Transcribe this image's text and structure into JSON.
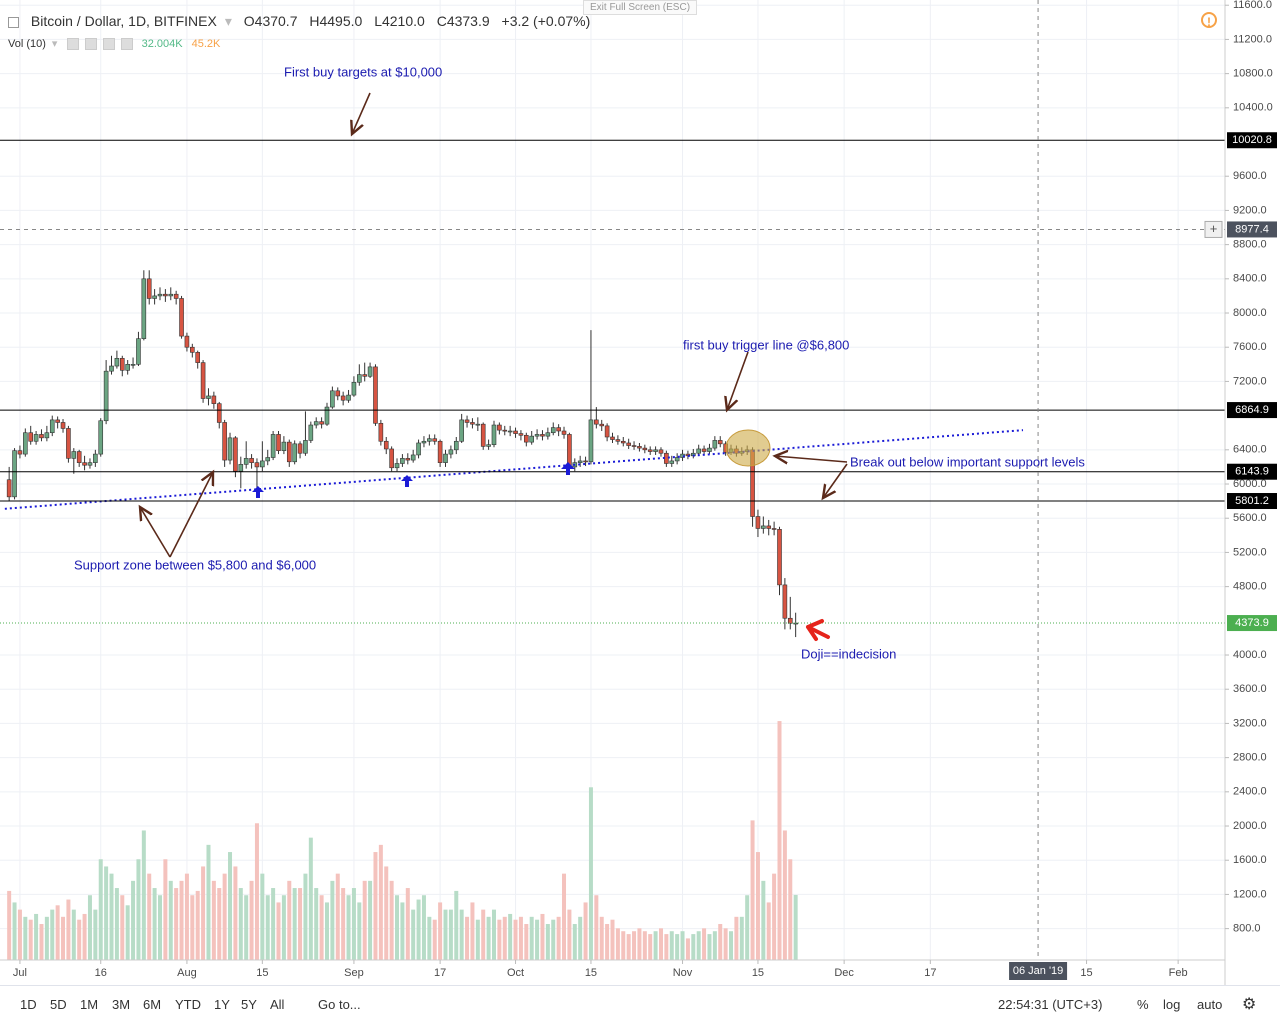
{
  "header": {
    "symbol": "Bitcoin / Dollar, 1D, BITFINEX",
    "ohlc": [
      "O4370.7",
      "H4495.0",
      "L4210.0",
      "C4373.9"
    ],
    "change": "+3.2 (+0.07%)",
    "volume_label": "Vol (10)",
    "volume_values": [
      "32.004K",
      "45.2K"
    ],
    "exit": "Exit Full Screen (ESC)"
  },
  "toolbar": {
    "ranges": [
      "1D",
      "5D",
      "1M",
      "3M",
      "6M",
      "YTD",
      "1Y",
      "5Y",
      "All"
    ],
    "goto": "Go to...",
    "clock": "22:54:31 (UTC+3)",
    "percent": "%",
    "log": "log",
    "auto": "auto"
  },
  "chart_data": {
    "type": "candlestick",
    "x": [
      -2,
      -1,
      0,
      1,
      2,
      3,
      4,
      5,
      6,
      7,
      8,
      9,
      10,
      11,
      12,
      13,
      14,
      15,
      16,
      17,
      18,
      19,
      20,
      21,
      22,
      23,
      24,
      25,
      26,
      27,
      28,
      29,
      30,
      31,
      32,
      33,
      34,
      35,
      36,
      37,
      38,
      39,
      40,
      41,
      42,
      43,
      44,
      45,
      46,
      47,
      48,
      49,
      50,
      51,
      52,
      53,
      54,
      55,
      56,
      57,
      58,
      59,
      60,
      61,
      62,
      63,
      64,
      65,
      66,
      67,
      68,
      69,
      70,
      71,
      72,
      73,
      74,
      75,
      76,
      77,
      78,
      79,
      80,
      81,
      82,
      83,
      84,
      85,
      86,
      87,
      88,
      89,
      90,
      91,
      92,
      93,
      94,
      95,
      96,
      97,
      98,
      99,
      100,
      101,
      102,
      103,
      104,
      105,
      106,
      107,
      108,
      109,
      110,
      111,
      112,
      113,
      114,
      115,
      116,
      117,
      118,
      119,
      120,
      121,
      122,
      123,
      124,
      125,
      126,
      127,
      128,
      129,
      130,
      131,
      132,
      133,
      134,
      135,
      136,
      137,
      138,
      139,
      140,
      141,
      142,
      143,
      144
    ],
    "open": [
      6050,
      5850,
      6390,
      6350,
      6600,
      6500,
      6580,
      6540,
      6600,
      6750,
      6720,
      6650,
      6300,
      6380,
      6250,
      6220,
      6250,
      6350,
      6740,
      7320,
      7380,
      7470,
      7330,
      7400,
      7400,
      7700,
      8400,
      8170,
      8200,
      8220,
      8200,
      8220,
      8170,
      7730,
      7600,
      7540,
      7420,
      7000,
      7030,
      6940,
      6720,
      6280,
      6540,
      6150,
      6230,
      6300,
      6250,
      6200,
      6270,
      6310,
      6580,
      6390,
      6490,
      6260,
      6470,
      6360,
      6510,
      6690,
      6730,
      6700,
      6900,
      7090,
      7030,
      6980,
      7040,
      7190,
      7280,
      7260,
      7370,
      6710,
      6500,
      6410,
      6190,
      6240,
      6300,
      6280,
      6340,
      6480,
      6500,
      6530,
      6500,
      6250,
      6350,
      6400,
      6500,
      6750,
      6720,
      6700,
      6700,
      6440,
      6460,
      6690,
      6630,
      6620,
      6620,
      6590,
      6570,
      6490,
      6560,
      6580,
      6560,
      6600,
      6660,
      6620,
      6580,
      6200,
      6250,
      6270,
      6260,
      6750,
      6700,
      6680,
      6550,
      6520,
      6500,
      6480,
      6450,
      6440,
      6420,
      6400,
      6380,
      6400,
      6360,
      6240,
      6270,
      6310,
      6350,
      6330,
      6360,
      6410,
      6380,
      6420,
      6510,
      6470,
      6370,
      6410,
      6360,
      6380,
      6400,
      5620,
      5480,
      5510,
      5480,
      5470,
      4820,
      4430,
      4370.7
    ],
    "high": [
      6200,
      6420,
      6450,
      6650,
      6680,
      6620,
      6640,
      6680,
      6800,
      6790,
      6760,
      6680,
      6420,
      6400,
      6330,
      6300,
      6400,
      6770,
      7450,
      7500,
      7560,
      7500,
      7450,
      7480,
      7780,
      8500,
      8500,
      8280,
      8300,
      8280,
      8300,
      8260,
      8200,
      7770,
      7640,
      7560,
      7450,
      7120,
      7080,
      6960,
      6750,
      6600,
      6560,
      6320,
      6500,
      6350,
      6300,
      6500,
      6400,
      6620,
      6620,
      6560,
      6520,
      6510,
      6500,
      6850,
      6730,
      6780,
      6780,
      6950,
      7140,
      7130,
      7080,
      7100,
      7260,
      7400,
      7420,
      7420,
      7400,
      6750,
      6550,
      6440,
      6300,
      6350,
      6360,
      6400,
      6520,
      6560,
      6580,
      6580,
      6520,
      6400,
      6450,
      6550,
      6820,
      6800,
      6770,
      6780,
      6720,
      6520,
      6740,
      6720,
      6680,
      6680,
      6660,
      6630,
      6600,
      6620,
      6640,
      6630,
      6660,
      6720,
      6700,
      6670,
      6600,
      6300,
      6330,
      6320,
      7800,
      6900,
      6750,
      6710,
      6600,
      6570,
      6550,
      6530,
      6500,
      6480,
      6460,
      6440,
      6440,
      6430,
      6390,
      6330,
      6360,
      6400,
      6390,
      6410,
      6460,
      6450,
      6470,
      6560,
      6560,
      6500,
      6460,
      6450,
      6430,
      6450,
      6430,
      5700,
      5620,
      5580,
      5560,
      5500,
      4900,
      4680,
      4495
    ],
    "low": [
      5800,
      5820,
      6300,
      6320,
      6460,
      6460,
      6500,
      6500,
      6560,
      6650,
      6600,
      6250,
      6120,
      6200,
      6160,
      6180,
      6200,
      6320,
      6700,
      7280,
      7350,
      7260,
      7280,
      7350,
      7380,
      7680,
      8100,
      8100,
      8150,
      8130,
      8150,
      8100,
      7700,
      7550,
      7480,
      7350,
      6950,
      6920,
      6880,
      6650,
      6200,
      6230,
      6080,
      5950,
      6180,
      6180,
      5880,
      6150,
      6220,
      6280,
      6350,
      6350,
      6200,
      6230,
      6300,
      6330,
      6480,
      6650,
      6650,
      6680,
      6880,
      6980,
      6920,
      6950,
      7020,
      7150,
      7200,
      7240,
      6680,
      6450,
      6350,
      6150,
      6150,
      6200,
      6230,
      6250,
      6300,
      6430,
      6450,
      6460,
      6200,
      6200,
      6300,
      6350,
      6480,
      6660,
      6650,
      6620,
      6400,
      6400,
      6430,
      6580,
      6570,
      6560,
      6540,
      6510,
      6440,
      6460,
      6520,
      6510,
      6520,
      6570,
      6560,
      6530,
      6150,
      6150,
      6200,
      6210,
      6230,
      6650,
      6620,
      6500,
      6480,
      6460,
      6440,
      6410,
      6400,
      6380,
      6360,
      6340,
      6340,
      6320,
      6200,
      6200,
      6230,
      6270,
      6290,
      6300,
      6330,
      6340,
      6350,
      6390,
      6430,
      6330,
      6340,
      6320,
      6330,
      6340,
      5500,
      5380,
      5420,
      5400,
      5400,
      4700,
      4300,
      4300,
      4210
    ],
    "close": [
      5850,
      6390,
      6350,
      6600,
      6500,
      6580,
      6540,
      6600,
      6750,
      6720,
      6650,
      6300,
      6380,
      6250,
      6220,
      6250,
      6350,
      6740,
      7320,
      7380,
      7470,
      7330,
      7400,
      7400,
      7700,
      8400,
      8170,
      8200,
      8220,
      8200,
      8220,
      8170,
      7730,
      7600,
      7540,
      7420,
      7000,
      7030,
      6940,
      6720,
      6280,
      6540,
      6150,
      6230,
      6300,
      6250,
      6200,
      6270,
      6310,
      6580,
      6390,
      6490,
      6260,
      6470,
      6360,
      6510,
      6690,
      6730,
      6700,
      6900,
      7090,
      7030,
      6980,
      7040,
      7190,
      7280,
      7260,
      7370,
      6710,
      6500,
      6410,
      6190,
      6240,
      6300,
      6280,
      6340,
      6480,
      6500,
      6530,
      6500,
      6250,
      6350,
      6400,
      6500,
      6750,
      6720,
      6700,
      6700,
      6440,
      6460,
      6690,
      6630,
      6620,
      6620,
      6590,
      6570,
      6490,
      6560,
      6580,
      6560,
      6600,
      6660,
      6620,
      6580,
      6200,
      6250,
      6270,
      6260,
      6750,
      6700,
      6680,
      6550,
      6520,
      6500,
      6480,
      6450,
      6440,
      6420,
      6400,
      6380,
      6400,
      6360,
      6240,
      6270,
      6310,
      6350,
      6330,
      6360,
      6410,
      6380,
      6420,
      6510,
      6470,
      6370,
      6410,
      6360,
      6380,
      6400,
      5620,
      5480,
      5510,
      5480,
      5470,
      4820,
      4430,
      4370.7,
      4373.9
    ],
    "volume": [
      48,
      40,
      35,
      30,
      28,
      32,
      25,
      30,
      35,
      38,
      30,
      42,
      35,
      28,
      32,
      45,
      35,
      70,
      65,
      60,
      50,
      45,
      38,
      55,
      70,
      90,
      60,
      50,
      45,
      70,
      55,
      50,
      55,
      60,
      45,
      48,
      65,
      80,
      55,
      50,
      60,
      75,
      65,
      50,
      45,
      55,
      95,
      60,
      45,
      50,
      40,
      45,
      55,
      50,
      50,
      60,
      85,
      50,
      45,
      40,
      55,
      60,
      50,
      45,
      50,
      40,
      55,
      55,
      75,
      80,
      65,
      55,
      45,
      40,
      50,
      35,
      42,
      45,
      30,
      28,
      40,
      35,
      35,
      48,
      35,
      30,
      40,
      28,
      35,
      30,
      35,
      28,
      30,
      32,
      28,
      30,
      25,
      30,
      28,
      32,
      25,
      28,
      30,
      60,
      35,
      25,
      30,
      40,
      120,
      45,
      30,
      25,
      28,
      22,
      20,
      18,
      20,
      22,
      20,
      18,
      20,
      22,
      18,
      20,
      18,
      20,
      15,
      18,
      20,
      22,
      18,
      20,
      25,
      22,
      20,
      30,
      30,
      45,
      97,
      75,
      55,
      40,
      60,
      166,
      90,
      70,
      45.2
    ],
    "up_color": "#6ba583",
    "down_color": "#d75442",
    "up_volume_color": "#b7dcc7",
    "down_volume_color": "#f4c2bd",
    "xlim": [
      -3.7,
      223.7
    ],
    "ylim": [
      433,
      11661
    ],
    "volume_lim": [
      0,
      667
    ],
    "xticks": [
      {
        "value": 0,
        "label": "Jul"
      },
      {
        "value": 15,
        "label": "16"
      },
      {
        "value": 31,
        "label": "Aug"
      },
      {
        "value": 45,
        "label": "15"
      },
      {
        "value": 62,
        "label": "Sep"
      },
      {
        "value": 78,
        "label": "17"
      },
      {
        "value": 92,
        "label": "Oct"
      },
      {
        "value": 106,
        "label": "15"
      },
      {
        "value": 123,
        "label": "Nov"
      },
      {
        "value": 137,
        "label": "15"
      },
      {
        "value": 153,
        "label": "Dec"
      },
      {
        "value": 169,
        "label": "17"
      },
      {
        "value": 198,
        "label": "15"
      },
      {
        "value": 215,
        "label": "Feb"
      }
    ],
    "yticks": [
      {
        "value": 11600,
        "label": "11600.0"
      },
      {
        "value": 11200,
        "label": "11200.0"
      },
      {
        "value": 10800,
        "label": "10800.0"
      },
      {
        "value": 10400,
        "label": "10400.0"
      },
      {
        "value": 9600,
        "label": "9600.0"
      },
      {
        "value": 9200,
        "label": "9200.0"
      },
      {
        "value": 8800,
        "label": "8800.0"
      },
      {
        "value": 8400,
        "label": "8400.0"
      },
      {
        "value": 8000,
        "label": "8000.0"
      },
      {
        "value": 7600,
        "label": "7600.0"
      },
      {
        "value": 7200,
        "label": "7200.0"
      },
      {
        "value": 6400,
        "label": "6400.0"
      },
      {
        "value": 6000,
        "label": "6000.0"
      },
      {
        "value": 5600,
        "label": "5600.0"
      },
      {
        "value": 5200,
        "label": "5200.0"
      },
      {
        "value": 4800,
        "label": "4800.0"
      },
      {
        "value": 4000,
        "label": "4000.0"
      },
      {
        "value": 3600,
        "label": "3600.0"
      },
      {
        "value": 3200,
        "label": "3200.0"
      },
      {
        "value": 2800,
        "label": "2800.0"
      },
      {
        "value": 2400,
        "label": "2400.0"
      },
      {
        "value": 2000,
        "label": "2000.0"
      },
      {
        "value": 1600,
        "label": "1600.0"
      },
      {
        "value": 1200,
        "label": "1200.0"
      },
      {
        "value": 800,
        "label": "800.0"
      }
    ],
    "grid": true,
    "levels": [
      10020.8,
      6864.9,
      6143.9,
      5801.2
    ],
    "level_color": "#000000",
    "crosshair": {
      "x": 189,
      "x_label": "06 Jan '19",
      "y": 8977.4
    },
    "last_price": {
      "value": 4373.9,
      "color": "#4caf50"
    },
    "trendline": {
      "x": [
        -2.8,
        186.2
      ],
      "y": [
        5710,
        6630
      ],
      "color": "#1b1bd6"
    },
    "annotations": [
      "First buy targets at $10,000",
      "first buy trigger line @$6,800",
      "Break out below important support levels",
      "Support zone between $5,800 and $6,000",
      "Doji==indecision"
    ]
  }
}
